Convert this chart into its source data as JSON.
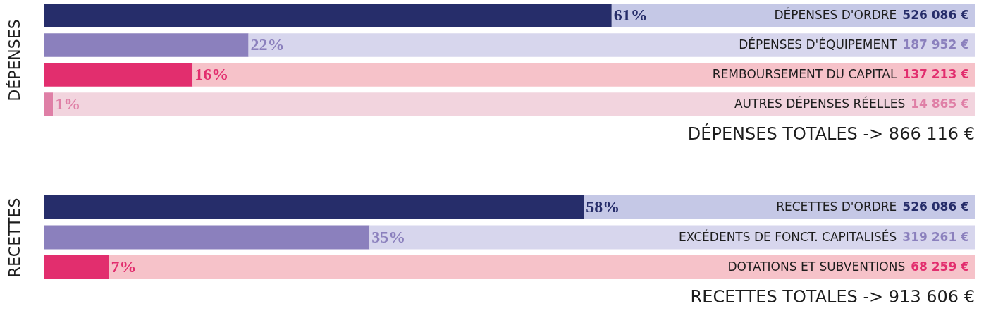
{
  "chart_data": [
    {
      "type": "bar",
      "orientation": "horizontal",
      "stacked": true,
      "ylabel": "DÉPENSES",
      "categories": [
        "DÉPENSES D'ORDRE",
        "DÉPENSES D'ÉQUIPEMENT",
        "REMBOURSEMENT DU CAPITAL",
        "AUTRES DÉPENSES RÉELLES"
      ],
      "xlim": [
        0,
        100
      ],
      "tick_labels": false,
      "grid": false,
      "series": [
        {
          "colors": [
            "#262d6a",
            "#8b80bd",
            "#e22e6e",
            "#df7fa6"
          ],
          "values": [
            61,
            22,
            16,
            1
          ],
          "value_labels": [
            "61%",
            "22%",
            "16%",
            "1%"
          ]
        },
        {
          "colors": [
            "#c5c8e6",
            "#d7d6ed",
            "#f6c2c9",
            "#f2d4de"
          ],
          "values": [
            39,
            78,
            84,
            99
          ]
        }
      ],
      "annotations": [
        "526 086 €",
        "187 952 €",
        "137 213 €",
        "14 865 €",
        "DÉPENSES TOTALES -> 866 116 €"
      ]
    },
    {
      "type": "bar",
      "orientation": "horizontal",
      "stacked": true,
      "ylabel": "RECETTES",
      "categories": [
        "RECETTES D'ORDRE",
        "EXCÉDENTS DE FONCT. CAPITALISÉS",
        "DOTATIONS ET SUBVENTIONS"
      ],
      "xlim": [
        0,
        100
      ],
      "tick_labels": false,
      "grid": false,
      "series": [
        {
          "colors": [
            "#262d6a",
            "#8b80bd",
            "#e22e6e"
          ],
          "values": [
            58,
            35,
            7
          ],
          "value_labels": [
            "58%",
            "35%",
            "7%"
          ]
        },
        {
          "colors": [
            "#c5c8e6",
            "#d7d6ed",
            "#f6c2c9"
          ],
          "values": [
            42,
            65,
            93
          ]
        }
      ],
      "annotations": [
        "526 086 €",
        "319 261 €",
        "68 259 €",
        "RECETTES TOTALES -> 913 606 €"
      ]
    }
  ]
}
